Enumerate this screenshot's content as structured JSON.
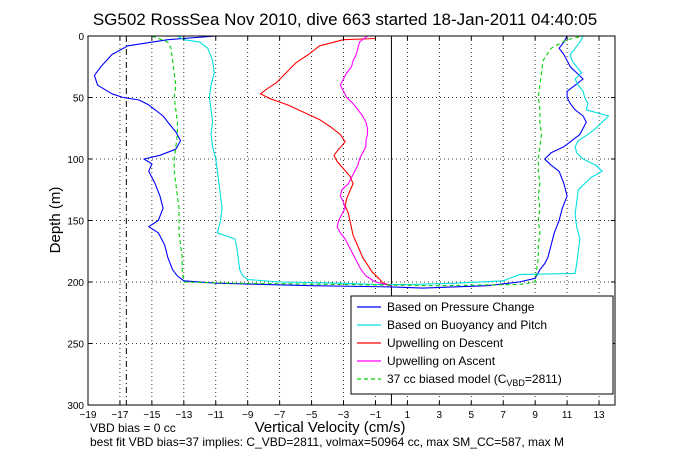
{
  "title": "SG502 RossSea Nov 2010, dive 663 started 18-Jan-2011 04:40:05",
  "xlabel": "Vertical Velocity (cm/s)",
  "ylabel": "Depth (m)",
  "footnote_1": "VBD bias = 0 cc",
  "footnote_2": "best fit VBD bias=37 implies: C_VBD=2811, volmax=50964 cc, max SM_CC=587, max M",
  "chart_data": {
    "type": "line",
    "title": "SG502 RossSea Nov 2010, dive 663 started 18-Jan-2011 04:40:05",
    "xlabel": "Vertical Velocity (cm/s)",
    "ylabel": "Depth (m)",
    "xlim": [
      -19,
      14
    ],
    "ylim": [
      300,
      0
    ],
    "y_reversed": true,
    "xticks": [
      -19,
      -17,
      -15,
      -13,
      -11,
      -9,
      -7,
      -5,
      -3,
      -1,
      1,
      3,
      5,
      7,
      9,
      11,
      13
    ],
    "yticks": [
      0,
      50,
      100,
      150,
      200,
      250,
      300
    ],
    "grid": true,
    "legend_position": "bottom-right",
    "vertical_lines": [
      {
        "x": -16.6,
        "style": "dashdot",
        "color": "#000000"
      },
      {
        "x": 0,
        "style": "solid",
        "color": "#000000"
      }
    ],
    "series": [
      {
        "name": "Based on Pressure Change",
        "color": "#0000ff",
        "pairs": [
          [
            -11,
            0
          ],
          [
            -14,
            3
          ],
          [
            -16.5,
            8
          ],
          [
            -17.5,
            15
          ],
          [
            -18.2,
            25
          ],
          [
            -18.6,
            32
          ],
          [
            -18.4,
            40
          ],
          [
            -17.5,
            47
          ],
          [
            -16.8,
            50
          ],
          [
            -15.8,
            52
          ],
          [
            -15.2,
            56
          ],
          [
            -14.8,
            60
          ],
          [
            -14.3,
            65
          ],
          [
            -14,
            70
          ],
          [
            -13.5,
            78
          ],
          [
            -13.2,
            85
          ],
          [
            -13.5,
            92
          ],
          [
            -14.5,
            97
          ],
          [
            -15.5,
            100
          ],
          [
            -15,
            104
          ],
          [
            -15.2,
            110
          ],
          [
            -14.8,
            120
          ],
          [
            -14.5,
            130
          ],
          [
            -14.3,
            140
          ],
          [
            -14.6,
            150
          ],
          [
            -15.2,
            155
          ],
          [
            -14.6,
            160
          ],
          [
            -14.2,
            170
          ],
          [
            -14,
            180
          ],
          [
            -13.7,
            190
          ],
          [
            -13.4,
            195
          ],
          [
            -13,
            199
          ],
          [
            -11,
            201
          ],
          [
            -5,
            203
          ],
          [
            0,
            204
          ],
          [
            2,
            205
          ],
          [
            6,
            203
          ],
          [
            8,
            200
          ],
          [
            9,
            197
          ],
          [
            9.3,
            190
          ],
          [
            9.6,
            185
          ],
          [
            9.8,
            180
          ],
          [
            10,
            170
          ],
          [
            10.2,
            160
          ],
          [
            10.5,
            150
          ],
          [
            10.7,
            140
          ],
          [
            11,
            130
          ],
          [
            10.8,
            120
          ],
          [
            10.5,
            110
          ],
          [
            10,
            105
          ],
          [
            9.6,
            100
          ],
          [
            10,
            95
          ],
          [
            10.8,
            90
          ],
          [
            11.3,
            85
          ],
          [
            11.8,
            80
          ],
          [
            12,
            75
          ],
          [
            12.2,
            70
          ],
          [
            12,
            65
          ],
          [
            11.5,
            60
          ],
          [
            11.2,
            55
          ],
          [
            11,
            50
          ],
          [
            11,
            45
          ],
          [
            11.5,
            40
          ],
          [
            12,
            35
          ],
          [
            11.6,
            30
          ],
          [
            11.2,
            25
          ],
          [
            11,
            20
          ],
          [
            10.8,
            15
          ],
          [
            10.5,
            10
          ],
          [
            10.8,
            5
          ],
          [
            11,
            0
          ]
        ]
      },
      {
        "name": "Based on Buoyancy and Pitch",
        "color": "#00e0e0",
        "pairs": [
          [
            -13.4,
            0
          ],
          [
            -13,
            3
          ],
          [
            -12,
            5
          ],
          [
            -11.5,
            10
          ],
          [
            -11.2,
            20
          ],
          [
            -11.1,
            30
          ],
          [
            -11.3,
            40
          ],
          [
            -11.4,
            50
          ],
          [
            -11.3,
            60
          ],
          [
            -11.2,
            70
          ],
          [
            -11.3,
            80
          ],
          [
            -11.2,
            90
          ],
          [
            -11,
            100
          ],
          [
            -10.9,
            110
          ],
          [
            -10.8,
            120
          ],
          [
            -10.7,
            130
          ],
          [
            -10.6,
            140
          ],
          [
            -10.7,
            150
          ],
          [
            -10.9,
            160
          ],
          [
            -9.8,
            165
          ],
          [
            -9.7,
            170
          ],
          [
            -9.6,
            180
          ],
          [
            -9.5,
            190
          ],
          [
            -9.3,
            195
          ],
          [
            -9,
            198
          ],
          [
            -7,
            200
          ],
          [
            -3,
            201
          ],
          [
            -1,
            202
          ],
          [
            1,
            202
          ],
          [
            4,
            201
          ],
          [
            7,
            199
          ],
          [
            8,
            194
          ],
          [
            11.5,
            193
          ],
          [
            11.6,
            185
          ],
          [
            11.7,
            175
          ],
          [
            11.8,
            165
          ],
          [
            11.6,
            155
          ],
          [
            11.5,
            145
          ],
          [
            11.6,
            135
          ],
          [
            11.7,
            125
          ],
          [
            12.5,
            115
          ],
          [
            13.2,
            110
          ],
          [
            12.8,
            105
          ],
          [
            12,
            100
          ],
          [
            11.6,
            95
          ],
          [
            11.5,
            90
          ],
          [
            11.7,
            85
          ],
          [
            12.3,
            80
          ],
          [
            12.8,
            75
          ],
          [
            13.2,
            70
          ],
          [
            13.6,
            65
          ],
          [
            12.2,
            60
          ],
          [
            12.3,
            55
          ],
          [
            12.1,
            50
          ],
          [
            12,
            45
          ],
          [
            11.7,
            40
          ],
          [
            11.5,
            35
          ],
          [
            11.9,
            30
          ],
          [
            11.6,
            25
          ],
          [
            11.3,
            20
          ],
          [
            11.2,
            15
          ],
          [
            11.5,
            10
          ],
          [
            11.8,
            5
          ],
          [
            12,
            0
          ]
        ]
      },
      {
        "name": "Upwelling on Descent",
        "color": "#ff0000",
        "pairs": [
          [
            -1,
            2
          ],
          [
            -3,
            3
          ],
          [
            -4.5,
            8
          ],
          [
            -5.2,
            15
          ],
          [
            -6,
            22
          ],
          [
            -6.6,
            30
          ],
          [
            -7.2,
            38
          ],
          [
            -7.8,
            43
          ],
          [
            -8.2,
            47
          ],
          [
            -7.6,
            51
          ],
          [
            -6.5,
            56
          ],
          [
            -5.5,
            62
          ],
          [
            -4.5,
            68
          ],
          [
            -3.8,
            74
          ],
          [
            -3.2,
            80
          ],
          [
            -2.9,
            86
          ],
          [
            -3.3,
            92
          ],
          [
            -3.6,
            97
          ],
          [
            -3.4,
            102
          ],
          [
            -3,
            108
          ],
          [
            -2.6,
            114
          ],
          [
            -2.4,
            120
          ],
          [
            -2.6,
            126
          ],
          [
            -2.8,
            132
          ],
          [
            -2.9,
            138
          ],
          [
            -2.7,
            144
          ],
          [
            -2.6,
            150
          ],
          [
            -2.5,
            156
          ],
          [
            -2.4,
            162
          ],
          [
            -2.2,
            168
          ],
          [
            -2,
            174
          ],
          [
            -1.8,
            180
          ],
          [
            -1.5,
            186
          ],
          [
            -1.2,
            192
          ],
          [
            -0.8,
            197
          ],
          [
            -0.5,
            201
          ],
          [
            0,
            203
          ]
        ]
      },
      {
        "name": "Upwelling on Ascent",
        "color": "#ff00ff",
        "pairs": [
          [
            0,
            203
          ],
          [
            -1,
            200
          ],
          [
            -1.6,
            195
          ],
          [
            -1.9,
            190
          ],
          [
            -2.1,
            185
          ],
          [
            -2.3,
            180
          ],
          [
            -2.5,
            175
          ],
          [
            -2.7,
            170
          ],
          [
            -2.9,
            165
          ],
          [
            -3.2,
            160
          ],
          [
            -3.4,
            155
          ],
          [
            -3.3,
            150
          ],
          [
            -3.1,
            145
          ],
          [
            -2.9,
            140
          ],
          [
            -3,
            135
          ],
          [
            -3.2,
            130
          ],
          [
            -3.1,
            125
          ],
          [
            -2.7,
            120
          ],
          [
            -2.5,
            115
          ],
          [
            -2.3,
            110
          ],
          [
            -2.1,
            105
          ],
          [
            -2,
            100
          ],
          [
            -1.8,
            95
          ],
          [
            -1.6,
            90
          ],
          [
            -1.6,
            85
          ],
          [
            -1.5,
            80
          ],
          [
            -1.5,
            75
          ],
          [
            -1.6,
            70
          ],
          [
            -1.8,
            65
          ],
          [
            -2.1,
            60
          ],
          [
            -2.4,
            55
          ],
          [
            -2.8,
            50
          ],
          [
            -3,
            45
          ],
          [
            -3.2,
            40
          ],
          [
            -3,
            35
          ],
          [
            -2.8,
            30
          ],
          [
            -2.5,
            25
          ],
          [
            -2.4,
            20
          ],
          [
            -2.2,
            15
          ],
          [
            -2.1,
            10
          ],
          [
            -2,
            5
          ],
          [
            -1.5,
            0
          ]
        ]
      },
      {
        "name": "37 cc biased model (C_VBD=2811)",
        "color": "#00d000",
        "dashed": true,
        "pairs": [
          [
            -15,
            0
          ],
          [
            -14,
            5
          ],
          [
            -13.8,
            10
          ],
          [
            -13.7,
            20
          ],
          [
            -13.6,
            30
          ],
          [
            -13.5,
            40
          ],
          [
            -13.6,
            50
          ],
          [
            -13.5,
            60
          ],
          [
            -13.4,
            70
          ],
          [
            -13.4,
            80
          ],
          [
            -13.5,
            90
          ],
          [
            -13.6,
            100
          ],
          [
            -13.6,
            110
          ],
          [
            -13.5,
            120
          ],
          [
            -13.4,
            130
          ],
          [
            -13.3,
            140
          ],
          [
            -13.3,
            150
          ],
          [
            -13.3,
            160
          ],
          [
            -13.2,
            170
          ],
          [
            -13.1,
            180
          ],
          [
            -13.1,
            190
          ],
          [
            -13,
            200
          ],
          [
            -10,
            201
          ],
          [
            -3,
            202
          ],
          [
            3,
            203
          ],
          [
            8,
            202
          ],
          [
            9,
            200
          ],
          [
            9.1,
            190
          ],
          [
            9.2,
            180
          ],
          [
            9.2,
            170
          ],
          [
            9.3,
            160
          ],
          [
            9.2,
            150
          ],
          [
            9.3,
            140
          ],
          [
            9.2,
            130
          ],
          [
            9.3,
            120
          ],
          [
            9.2,
            110
          ],
          [
            9.2,
            100
          ],
          [
            9.3,
            90
          ],
          [
            9.4,
            80
          ],
          [
            9.3,
            70
          ],
          [
            9.3,
            60
          ],
          [
            9.2,
            50
          ],
          [
            9.3,
            40
          ],
          [
            9.4,
            30
          ],
          [
            9.5,
            20
          ],
          [
            10,
            10
          ],
          [
            11,
            3
          ],
          [
            12,
            0
          ]
        ]
      }
    ],
    "legend": [
      {
        "label": "Based on Pressure Change",
        "color": "#0000ff",
        "dashed": false
      },
      {
        "label": "Based on Buoyancy and Pitch",
        "color": "#00e0e0",
        "dashed": false
      },
      {
        "label": "Upwelling on Descent",
        "color": "#ff0000",
        "dashed": false
      },
      {
        "label": "Upwelling on Ascent",
        "color": "#ff00ff",
        "dashed": false
      },
      {
        "label": "37 cc biased model (C",
        "sub": "VBD",
        "suffix": "=2811)",
        "color": "#00d000",
        "dashed": true
      }
    ]
  }
}
